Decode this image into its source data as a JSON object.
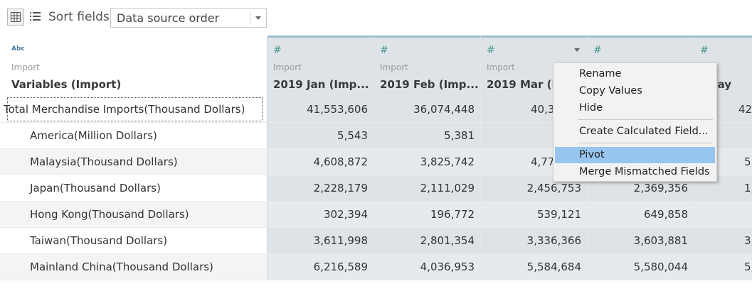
{
  "toolbar": {
    "grid_icon": "grid-view-icon",
    "list_icon": "list-view-icon",
    "sort_label": "Sort fields",
    "sort_value": "Data source order"
  },
  "columns": [
    {
      "type_icon": "Abc",
      "source": "Import",
      "name": "Variables (Import)"
    },
    {
      "type_icon": "#",
      "source": "Import",
      "name": "2019 Jan (Imp..."
    },
    {
      "type_icon": "#",
      "source": "Import",
      "name": "2019 Feb (Imp..."
    },
    {
      "type_icon": "#",
      "source": "Import",
      "name": "2019 Mar (Im"
    },
    {
      "type_icon": "#",
      "source": "",
      "name": ""
    },
    {
      "type_icon": "#",
      "source": "ort",
      "name": "9 May"
    }
  ],
  "rows": [
    {
      "label": "Total Merchandise Imports(Thousand Dollars)",
      "values": [
        "41,553,606",
        "36,074,448",
        "40,34",
        "",
        "42,"
      ]
    },
    {
      "label": "America(Million Dollars)",
      "values": [
        "5,543",
        "5,381",
        "",
        "",
        ""
      ]
    },
    {
      "label": "Malaysia(Thousand Dollars)",
      "values": [
        "4,608,872",
        "3,825,742",
        "4,77",
        "",
        "5,"
      ]
    },
    {
      "label": "Japan(Thousand Dollars)",
      "values": [
        "2,228,179",
        "2,111,029",
        "2,456,753",
        "2,369,356",
        "1,"
      ]
    },
    {
      "label": "Hong Kong(Thousand Dollars)",
      "values": [
        "302,394",
        "196,772",
        "539,121",
        "649,858",
        ""
      ]
    },
    {
      "label": "Taiwan(Thousand Dollars)",
      "values": [
        "3,611,998",
        "2,801,354",
        "3,336,366",
        "3,603,881",
        "3,"
      ]
    },
    {
      "label": "Mainland China(Thousand Dollars)",
      "values": [
        "6,216,589",
        "4,036,953",
        "5,584,684",
        "5,580,044",
        "5,"
      ]
    }
  ],
  "context_menu": {
    "items": [
      "Rename",
      "Copy Values",
      "Hide",
      "Create Calculated Field...",
      "Pivot",
      "Merge Mismatched Fields"
    ],
    "highlighted": "Pivot"
  },
  "colors": {
    "header_accent": "#9bbdd3",
    "number_type": "#4a9a8c",
    "string_type": "#4b7aa3",
    "menu_highlight": "#97c5ef",
    "grid_bg": "#dee3e7"
  }
}
